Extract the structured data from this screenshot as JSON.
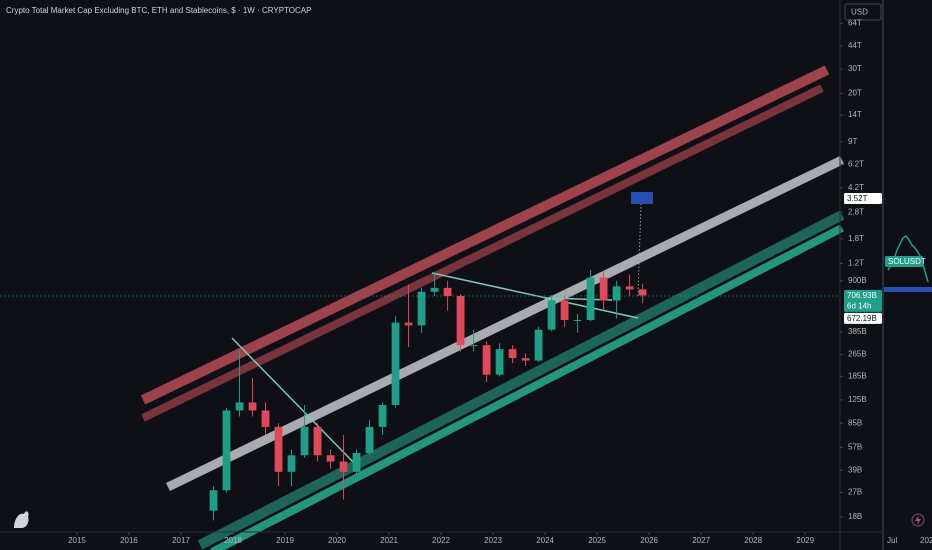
{
  "chart_data": {
    "type": "candlestick",
    "title": "Crypto Total Market Cap Excluding BTC, ETH and Stablecoins, $ · 1W · CRYPTOCAP",
    "currency": "USD",
    "log_scale": true,
    "up_color": "#1f9e89",
    "down_color": "#e0495a",
    "x": [
      2017.625,
      2017.875,
      2018.125,
      2018.375,
      2018.625,
      2018.875,
      2019.125,
      2019.375,
      2019.625,
      2019.875,
      2020.125,
      2020.375,
      2020.625,
      2020.875,
      2021.125,
      2021.375,
      2021.625,
      2021.875,
      2022.125,
      2022.375,
      2022.625,
      2022.875,
      2023.125,
      2023.375,
      2023.625,
      2023.875,
      2024.125,
      2024.375,
      2024.625,
      2024.875,
      2025.125,
      2025.375,
      2025.625,
      2025.875
    ],
    "open": [
      20,
      28,
      105,
      120,
      105,
      80,
      38,
      50,
      80,
      50,
      45,
      38,
      52,
      80,
      115,
      450,
      430,
      750,
      800,
      700,
      310,
      310,
      190,
      290,
      250,
      240,
      400,
      650,
      470,
      470,
      950,
      650,
      820,
      780
    ],
    "high": [
      30,
      110,
      286,
      180,
      120,
      85,
      55,
      115,
      85,
      55,
      70,
      55,
      90,
      120,
      500,
      840,
      800,
      1040,
      900,
      720,
      400,
      330,
      320,
      310,
      270,
      420,
      711,
      700,
      520,
      1076,
      1050,
      900,
      1000,
      860
    ],
    "low": [
      17,
      27,
      95,
      95,
      70,
      30,
      30,
      48,
      45,
      40,
      24,
      36,
      50,
      70,
      110,
      300,
      380,
      700,
      550,
      280,
      280,
      168,
      185,
      230,
      220,
      235,
      390,
      420,
      380,
      460,
      560,
      480,
      700,
      620
    ],
    "close": [
      28,
      105,
      120,
      105,
      80,
      38,
      50,
      80,
      50,
      45,
      38,
      52,
      80,
      115,
      450,
      430,
      750,
      800,
      700,
      310,
      310,
      190,
      290,
      250,
      240,
      400,
      650,
      470,
      470,
      950,
      650,
      820,
      780,
      707
    ],
    "xlim": [
      2013.52,
      2029.67
    ],
    "xticks": [
      2015,
      2016,
      2017,
      2018,
      2019,
      2020,
      2021,
      2022,
      2023,
      2024,
      2025,
      2026,
      2027,
      2028,
      2029
    ],
    "ylim": [
      14.5,
      94200
    ],
    "yticks": [
      {
        "value": 64000,
        "label": "64T"
      },
      {
        "value": 44000,
        "label": "44T"
      },
      {
        "value": 30000,
        "label": "30T"
      },
      {
        "value": 20000,
        "label": "20T"
      },
      {
        "value": 14000,
        "label": "14T"
      },
      {
        "value": 9000,
        "label": "9T"
      },
      {
        "value": 6200,
        "label": "6.2T"
      },
      {
        "value": 4200,
        "label": "4.2T"
      },
      {
        "value": 2800,
        "label": "2.8T"
      },
      {
        "value": 1800,
        "label": "1.8T"
      },
      {
        "value": 1200,
        "label": "1.2T"
      },
      {
        "value": 900,
        "label": "900B"
      },
      {
        "value": 385,
        "label": "385B"
      },
      {
        "value": 265,
        "label": "265B"
      },
      {
        "value": 185,
        "label": "185B"
      },
      {
        "value": 125,
        "label": "125B"
      },
      {
        "value": 85,
        "label": "85B"
      },
      {
        "value": 57,
        "label": "57B"
      },
      {
        "value": 39,
        "label": "39B"
      },
      {
        "value": 27,
        "label": "27B"
      },
      {
        "value": 18,
        "label": "18B"
      }
    ],
    "price_labels": [
      {
        "value": 3520,
        "label": "3.52T",
        "color": "#ffffff"
      },
      {
        "value": 706.93,
        "label": "706.93B",
        "color": "#1f9e89",
        "countdown": "6d 14h"
      },
      {
        "value": 672.19,
        "label": "672.19B",
        "color": "#ffffff"
      }
    ],
    "side_panel": {
      "symbol": "SOLUSDT",
      "x_labels": [
        "Jul",
        "202"
      ]
    }
  }
}
